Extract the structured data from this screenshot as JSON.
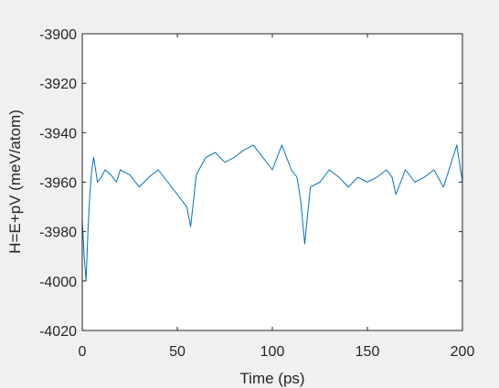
{
  "chart_data": {
    "type": "line",
    "title": "",
    "xlabel": "Time (ps)",
    "ylabel": "H=E+pV (meV/atom)",
    "xlim": [
      0,
      200
    ],
    "ylim": [
      -4020,
      -3900
    ],
    "x_ticks": [
      0,
      50,
      100,
      150,
      200
    ],
    "y_ticks": [
      -3900,
      -3920,
      -3940,
      -3960,
      -3980,
      -4000,
      -4020
    ],
    "x_tick_labels": [
      "0",
      "50",
      "100",
      "150",
      "200"
    ],
    "y_tick_labels": [
      "-3900",
      "-3920",
      "-3940",
      "-3960",
      "-3980",
      "-4000",
      "-4020"
    ],
    "grid": false,
    "legend": "none",
    "series": [
      {
        "color": "#0072BD",
        "x": [
          0,
          1,
          2,
          3,
          4,
          5,
          6,
          7,
          8,
          10,
          12,
          15,
          18,
          20,
          25,
          30,
          35,
          40,
          45,
          50,
          55,
          57,
          60,
          65,
          70,
          75,
          80,
          85,
          90,
          95,
          100,
          105,
          110,
          113,
          115,
          117,
          120,
          125,
          130,
          135,
          140,
          145,
          150,
          155,
          160,
          163,
          165,
          170,
          175,
          180,
          185,
          190,
          195,
          197,
          200
        ],
        "y": [
          -3975,
          -3990,
          -4000,
          -3980,
          -3965,
          -3955,
          -3950,
          -3955,
          -3960,
          -3958,
          -3955,
          -3957,
          -3960,
          -3955,
          -3957,
          -3962,
          -3958,
          -3955,
          -3960,
          -3965,
          -3970,
          -3978,
          -3957,
          -3950,
          -3948,
          -3952,
          -3950,
          -3947,
          -3945,
          -3950,
          -3955,
          -3945,
          -3955,
          -3958,
          -3968,
          -3985,
          -3962,
          -3960,
          -3955,
          -3958,
          -3962,
          -3958,
          -3960,
          -3958,
          -3955,
          -3958,
          -3965,
          -3955,
          -3960,
          -3958,
          -3955,
          -3962,
          -3950,
          -3945,
          -3960
        ]
      }
    ]
  }
}
